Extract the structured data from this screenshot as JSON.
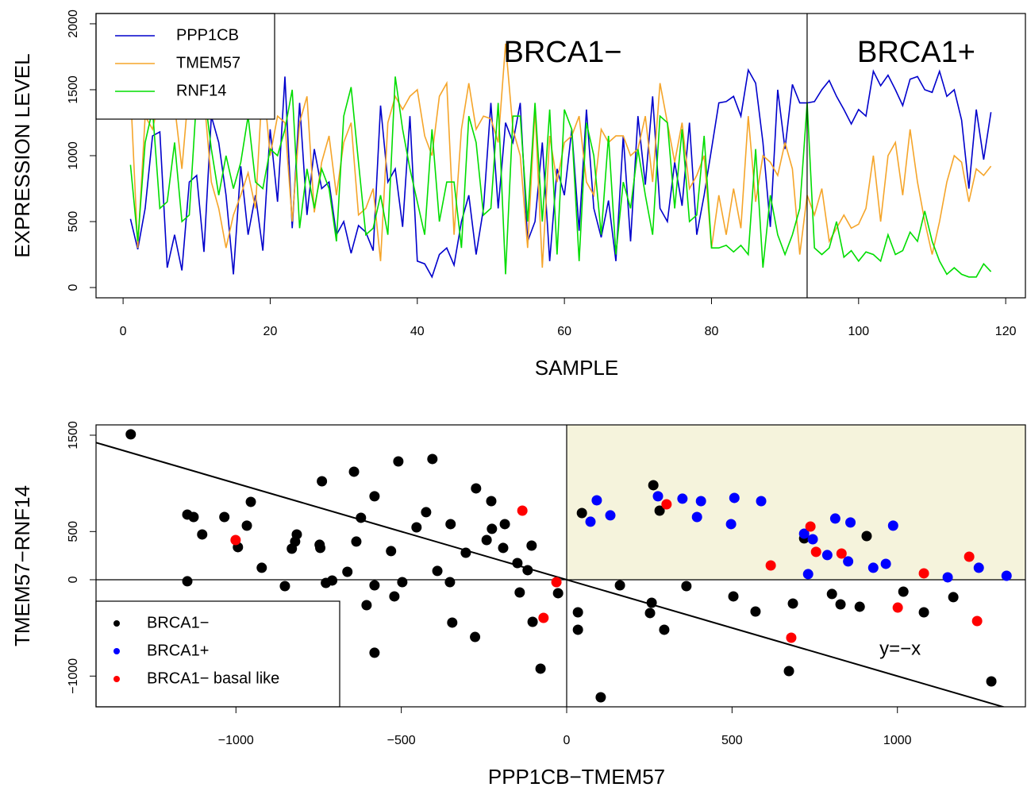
{
  "chart_data": [
    {
      "type": "line",
      "x": [
        1,
        2,
        3,
        4,
        5,
        6,
        7,
        8,
        9,
        10,
        11,
        12,
        13,
        14,
        15,
        16,
        17,
        18,
        19,
        20,
        21,
        22,
        23,
        24,
        25,
        26,
        27,
        28,
        29,
        30,
        31,
        32,
        33,
        34,
        35,
        36,
        37,
        38,
        39,
        40,
        41,
        42,
        43,
        44,
        45,
        46,
        47,
        48,
        49,
        50,
        51,
        52,
        53,
        54,
        55,
        56,
        57,
        58,
        59,
        60,
        61,
        62,
        63,
        64,
        65,
        66,
        67,
        68,
        69,
        70,
        71,
        72,
        73,
        74,
        75,
        76,
        77,
        78,
        79,
        80,
        81,
        82,
        83,
        84,
        85,
        86,
        87,
        88,
        89,
        90,
        91,
        92,
        93,
        94,
        95,
        96,
        97,
        98,
        99,
        100,
        101,
        102,
        103,
        104,
        105,
        106,
        107,
        108,
        109,
        110,
        111,
        112,
        113,
        114,
        115,
        116,
        117,
        118
      ],
      "series": [
        {
          "name": "PPP1CB",
          "color": "#0000cc",
          "values": [
            520,
            290,
            600,
            1150,
            1180,
            150,
            400,
            130,
            800,
            850,
            270,
            1300,
            1100,
            700,
            100,
            920,
            400,
            700,
            280,
            1200,
            650,
            1600,
            450,
            1400,
            550,
            1050,
            750,
            800,
            400,
            500,
            260,
            470,
            420,
            280,
            1380,
            800,
            900,
            460,
            1300,
            200,
            180,
            80,
            250,
            300,
            170,
            500,
            700,
            250,
            600,
            1400,
            600,
            1250,
            1100,
            1400,
            350,
            500,
            1100,
            200,
            900,
            700,
            1200,
            430,
            1350,
            600,
            380,
            660,
            200,
            1150,
            350,
            1300,
            780,
            1450,
            600,
            500,
            950,
            620,
            1250,
            400,
            700,
            1050,
            1400,
            1410,
            1450,
            1300,
            1650,
            1550,
            1100,
            460,
            1500,
            1050,
            1540,
            1400,
            1400,
            1410,
            1500,
            1570,
            1450,
            1350,
            1240,
            1350,
            1300,
            1640,
            1530,
            1610,
            1500,
            1380,
            1580,
            1600,
            1500,
            1480,
            1640,
            1450,
            1500,
            1270,
            750,
            1350,
            970,
            1330
          ]
        },
        {
          "name": "TMEM57",
          "color": "#f5a52a",
          "values": [
            1500,
            300,
            1300,
            1200,
            1450,
            1350,
            1380,
            900,
            1550,
            1300,
            1450,
            800,
            600,
            300,
            550,
            700,
            870,
            600,
            1600,
            1000,
            1300,
            1250,
            500,
            1250,
            1450,
            570,
            950,
            1150,
            700,
            1100,
            1250,
            550,
            600,
            750,
            200,
            1250,
            1450,
            1350,
            1450,
            1500,
            1150,
            1000,
            1450,
            1550,
            400,
            1200,
            1550,
            1200,
            1300,
            1280,
            1100,
            1850,
            1200,
            1000,
            300,
            1350,
            150,
            1150,
            800,
            1100,
            1150,
            1300,
            800,
            700,
            1200,
            1100,
            1150,
            1150,
            1000,
            1050,
            1300,
            800,
            1550,
            1250,
            950,
            1250,
            750,
            850,
            1000,
            300,
            700,
            400,
            750,
            450,
            1300,
            650,
            1000,
            950,
            850,
            1100,
            900,
            250,
            700,
            550,
            750,
            350,
            450,
            550,
            450,
            480,
            600,
            1000,
            500,
            1000,
            1100,
            700,
            1200,
            800,
            500,
            250,
            500,
            800,
            1000,
            950,
            650,
            900,
            850,
            920
          ]
        },
        {
          "name": "RNF14",
          "color": "#00dd00",
          "values": [
            930,
            350,
            1100,
            1350,
            600,
            650,
            1100,
            500,
            550,
            1450,
            1500,
            1050,
            700,
            1000,
            750,
            950,
            1300,
            800,
            750,
            1050,
            1000,
            1200,
            1500,
            450,
            900,
            600,
            900,
            750,
            350,
            1300,
            1520,
            950,
            400,
            450,
            700,
            400,
            1600,
            1200,
            900,
            650,
            400,
            1200,
            500,
            800,
            800,
            300,
            1300,
            1100,
            550,
            600,
            1400,
            100,
            1300,
            1300,
            500,
            1400,
            500,
            1350,
            250,
            1350,
            1200,
            200,
            1250,
            1000,
            400,
            1150,
            250,
            800,
            600,
            1050,
            700,
            400,
            1300,
            1250,
            600,
            1200,
            500,
            550,
            1150,
            300,
            300,
            320,
            270,
            320,
            250,
            1050,
            150,
            700,
            400,
            250,
            400,
            600,
            1400,
            300,
            250,
            300,
            500,
            230,
            280,
            200,
            270,
            250,
            200,
            400,
            250,
            280,
            420,
            350,
            580,
            350,
            200,
            100,
            150,
            100,
            80,
            80,
            180,
            120
          ]
        }
      ],
      "xlim": [
        -3.68,
        122.68
      ],
      "ylim": [
        -78,
        2078
      ],
      "xticks": [
        0,
        20,
        40,
        60,
        80,
        100,
        120
      ],
      "yticks": [
        0,
        500,
        1000,
        1500,
        2000
      ],
      "xlabel": "SAMPLE",
      "ylabel": "EXPRESSION LEVEL",
      "vline_x": 93,
      "annotations": [
        "BRCA1−",
        "BRCA1+"
      ],
      "legend": "top-left"
    },
    {
      "type": "scatter",
      "series": [
        {
          "name": "BRCA1−",
          "color": "#000000",
          "x": [
            -1318,
            -1147,
            -1128,
            -1102,
            -1147,
            -1035,
            -994,
            -955,
            -967,
            -922,
            -852,
            -831,
            -816,
            -821,
            -787,
            -747,
            -745,
            -740,
            -728,
            -709,
            -663,
            -643,
            -636,
            -622,
            -605,
            -581,
            -581,
            -581,
            -531,
            -521,
            -509,
            -497,
            -454,
            -425,
            -406,
            -391,
            -351,
            -353,
            -346,
            -305,
            -277,
            -274,
            -242,
            -228,
            -226,
            -187,
            -192,
            -149,
            -142,
            -118,
            -106,
            -103,
            -79,
            -26,
            34,
            34,
            46,
            103,
            161,
            252,
            257,
            262,
            281,
            295,
            362,
            504,
            571,
            684,
            672,
            718,
            802,
            828,
            886,
            907,
            1018,
            1080,
            1169,
            1284
          ],
          "y": [
            1509,
            676,
            651,
            470,
            -16,
            651,
            338,
            808,
            561,
            124,
            -66,
            322,
            470,
            396,
            -577,
            363,
            330,
            1022,
            -33,
            -8,
            82,
            1121,
            396,
            643,
            -264,
            866,
            -58,
            -758,
            297,
            -173,
            1228,
            -25,
            544,
            701,
            1253,
            91,
            577,
            -25,
            -445,
            280,
            -594,
            948,
            412,
            816,
            528,
            577,
            330,
            173,
            -132,
            99,
            354,
            -437,
            -923,
            -140,
            -338,
            -519,
            692,
            -1220,
            -58,
            -346,
            -239,
            981,
            717,
            -519,
            -66,
            -173,
            -330,
            -247,
            -948,
            429,
            -148,
            -256,
            -280,
            453,
            -124,
            -338,
            -181,
            -1055
          ]
        },
        {
          "name": "BRCA1+",
          "color": "#0000ff",
          "x": [
            72,
            91,
            132,
            276,
            350,
            394,
            406,
            497,
            507,
            588,
            718,
            730,
            744,
            788,
            812,
            851,
            858,
            927,
            965,
            987,
            1152,
            1246,
            1330
          ],
          "y": [
            602,
            824,
            668,
            866,
            841,
            651,
            816,
            577,
            849,
            816,
            478,
            58,
            420,
            256,
            635,
            190,
            594,
            124,
            165,
            561,
            25,
            124,
            41
          ]
        },
        {
          "name": "BRCA1− basal like",
          "color": "#ff0000",
          "x": [
            -1001,
            -134,
            -70,
            -31,
            302,
            617,
            679,
            737,
            754,
            831,
            1001,
            1080,
            1217,
            1241
          ],
          "y": [
            412,
            717,
            -396,
            -25,
            783,
            148,
            -602,
            552,
            289,
            272,
            -289,
            66,
            239,
            -429
          ]
        }
      ],
      "xlim": [
        -1423,
        1387
      ],
      "ylim": [
        -1319,
        1607
      ],
      "xticks": [
        {
          "value": -1000,
          "label": "−1000"
        },
        {
          "value": -500,
          "label": "−500"
        },
        0,
        500,
        1000
      ],
      "yticks": [
        {
          "value": -1000,
          "label": "−1000"
        },
        0,
        500,
        1500
      ],
      "xlabel": "PPP1CB−TMEM57",
      "ylabel": "TMEM57−RNF14",
      "ref_line": {
        "slope": -1,
        "intercept": 0,
        "label": "y=−x"
      },
      "legend": "bottom-left"
    }
  ]
}
